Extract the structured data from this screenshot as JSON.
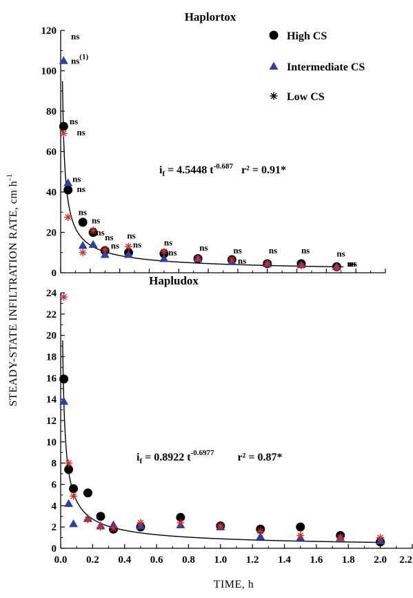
{
  "colors": {
    "high": "#000000",
    "intermediate": "#2d3fa0",
    "low": "#d62a2a",
    "axis": "#000000"
  },
  "legend": {
    "high": "High CS",
    "intermediate": "Intermediate CS",
    "low": "Low CS"
  },
  "xlabel": "TIME, h",
  "ylabel": "STEADY-STATE INFILTRATION RATE, cm h",
  "ylabel_sup": "-1",
  "chart_data": [
    {
      "type": "scatter",
      "title": "Haplortox",
      "xlim": [
        0.0,
        2.2
      ],
      "ylim": [
        0,
        120
      ],
      "yticks": [
        0,
        20,
        40,
        60,
        80,
        100,
        120
      ],
      "ytick_labels": [
        "0",
        "20",
        "40",
        "60",
        "80",
        "100",
        "120"
      ],
      "equation": {
        "lhs": "i",
        "sub": "f",
        "mid": " = 4.5448 t",
        "exp": "-0.687",
        "r2": "r² = 0.91*"
      },
      "fit": {
        "a": 4.5448,
        "b": -0.687
      },
      "series": [
        {
          "name": "High CS",
          "marker": "circle",
          "x": [
            0.02,
            0.05,
            0.15,
            0.22,
            0.3,
            0.46,
            0.7,
            0.93,
            1.16,
            1.4,
            1.63,
            1.87
          ],
          "y": [
            72.5,
            41,
            25,
            20,
            11,
            10,
            9.5,
            7,
            6.5,
            4.5,
            4.5,
            3
          ]
        },
        {
          "name": "Intermediate CS",
          "marker": "triangle",
          "x": [
            0.02,
            0.05,
            0.15,
            0.22,
            0.3,
            0.46,
            0.7,
            0.93,
            1.16,
            1.4,
            1.63,
            1.87
          ],
          "y": [
            105,
            44.5,
            13.5,
            14,
            9,
            9,
            7,
            7,
            5.5,
            4.5,
            4,
            3
          ]
        },
        {
          "name": "Low CS",
          "marker": "asterisk",
          "x": [
            0.02,
            0.05,
            0.15,
            0.22,
            0.3,
            0.46,
            0.7,
            0.93,
            1.16,
            1.4,
            1.63,
            1.87
          ],
          "y": [
            69,
            27.5,
            10,
            21,
            11.5,
            13,
            10.5,
            7,
            6.5,
            4.5,
            3.5,
            2.5
          ]
        }
      ],
      "annotations": [
        {
          "text": "ns",
          "x": 0.07,
          "y": 115.5
        },
        {
          "text": "ns",
          "x": 0.07,
          "y": 103.5,
          "sup": "(1)"
        },
        {
          "text": "ns",
          "x": 0.06,
          "y": 73.5
        },
        {
          "text": "ns",
          "x": 0.11,
          "y": 68
        },
        {
          "text": "ns",
          "x": 0.08,
          "y": 45
        },
        {
          "text": "ns",
          "x": 0.11,
          "y": 40
        },
        {
          "text": "ns",
          "x": 0.12,
          "y": 28.5
        },
        {
          "text": "ns",
          "x": 0.21,
          "y": 24.5
        },
        {
          "text": "ns",
          "x": 0.24,
          "y": 18.5
        },
        {
          "text": "ns",
          "x": 0.3,
          "y": 16
        },
        {
          "text": "ns",
          "x": 0.34,
          "y": 12
        },
        {
          "text": "ns",
          "x": 0.45,
          "y": 17
        },
        {
          "text": "ns",
          "x": 0.49,
          "y": 12.5
        },
        {
          "text": "ns",
          "x": 0.7,
          "y": 13.5
        },
        {
          "text": "ns",
          "x": 0.73,
          "y": 8.5
        },
        {
          "text": "ns",
          "x": 0.94,
          "y": 11
        },
        {
          "text": "ns",
          "x": 1.17,
          "y": 9.5
        },
        {
          "text": "ns",
          "x": 1.2,
          "y": 4.5
        },
        {
          "text": "ns",
          "x": 1.41,
          "y": 9.5
        },
        {
          "text": "ns",
          "x": 1.63,
          "y": 9.5
        },
        {
          "text": "ns",
          "x": 1.87,
          "y": 8
        },
        {
          "text": "ns",
          "x": 1.94,
          "y": 3
        },
        {
          "text": "ns",
          "x": 1.95,
          "y": 3
        }
      ]
    },
    {
      "type": "scatter",
      "title": "Hapludox",
      "xlim": [
        0.0,
        2.2
      ],
      "ylim": [
        0,
        24
      ],
      "xticks": [
        0.0,
        0.2,
        0.4,
        0.6,
        0.8,
        1.0,
        1.2,
        1.4,
        1.6,
        1.8,
        2.0,
        2.2
      ],
      "xtick_labels": [
        "0.0",
        "0.2",
        "0.4",
        "0.6",
        "0.8",
        "1.0",
        "1.2",
        "1.4",
        "1.6",
        "1.8",
        "2.0",
        "2.2"
      ],
      "yticks": [
        0,
        2,
        4,
        6,
        8,
        10,
        12,
        14,
        16,
        18,
        20,
        22,
        24
      ],
      "ytick_labels": [
        "0",
        "2",
        "4",
        "6",
        "8",
        "10",
        "12",
        "14",
        "16",
        "18",
        "20",
        "22",
        "24"
      ],
      "equation": {
        "lhs": "i",
        "sub": "f",
        "mid": " = 0.8922 t",
        "exp": "-0.6977",
        "r2": "r² = 0.87*"
      },
      "fit": {
        "a": 0.8922,
        "b": -0.6977
      },
      "series": [
        {
          "name": "High CS",
          "marker": "circle",
          "x": [
            0.02,
            0.05,
            0.08,
            0.17,
            0.25,
            0.33,
            0.5,
            0.75,
            1.0,
            1.25,
            1.5,
            1.75,
            2.0
          ],
          "y": [
            15.9,
            7.4,
            5.6,
            5.2,
            3.0,
            1.8,
            2.0,
            2.9,
            2.1,
            1.8,
            2.0,
            1.2,
            0.6
          ]
        },
        {
          "name": "Intermediate CS",
          "marker": "triangle",
          "x": [
            0.02,
            0.05,
            0.08,
            0.17,
            0.25,
            0.33,
            0.5,
            0.75,
            1.0,
            1.25,
            1.5,
            1.75,
            2.0
          ],
          "y": [
            13.8,
            4.2,
            2.3,
            2.8,
            2.1,
            2.2,
            2.1,
            2.2,
            2.0,
            1.1,
            1.0,
            1.0,
            0.7
          ]
        },
        {
          "name": "Low CS",
          "marker": "asterisk",
          "x": [
            0.02,
            0.05,
            0.08,
            0.17,
            0.25,
            0.33,
            0.5,
            0.75,
            1.0,
            1.25,
            1.5,
            1.75,
            2.0
          ],
          "y": [
            23.6,
            8.0,
            4.9,
            2.7,
            2.0,
            1.9,
            2.4,
            2.4,
            2.1,
            1.6,
            1.2,
            1.0,
            1.0
          ]
        }
      ]
    }
  ]
}
